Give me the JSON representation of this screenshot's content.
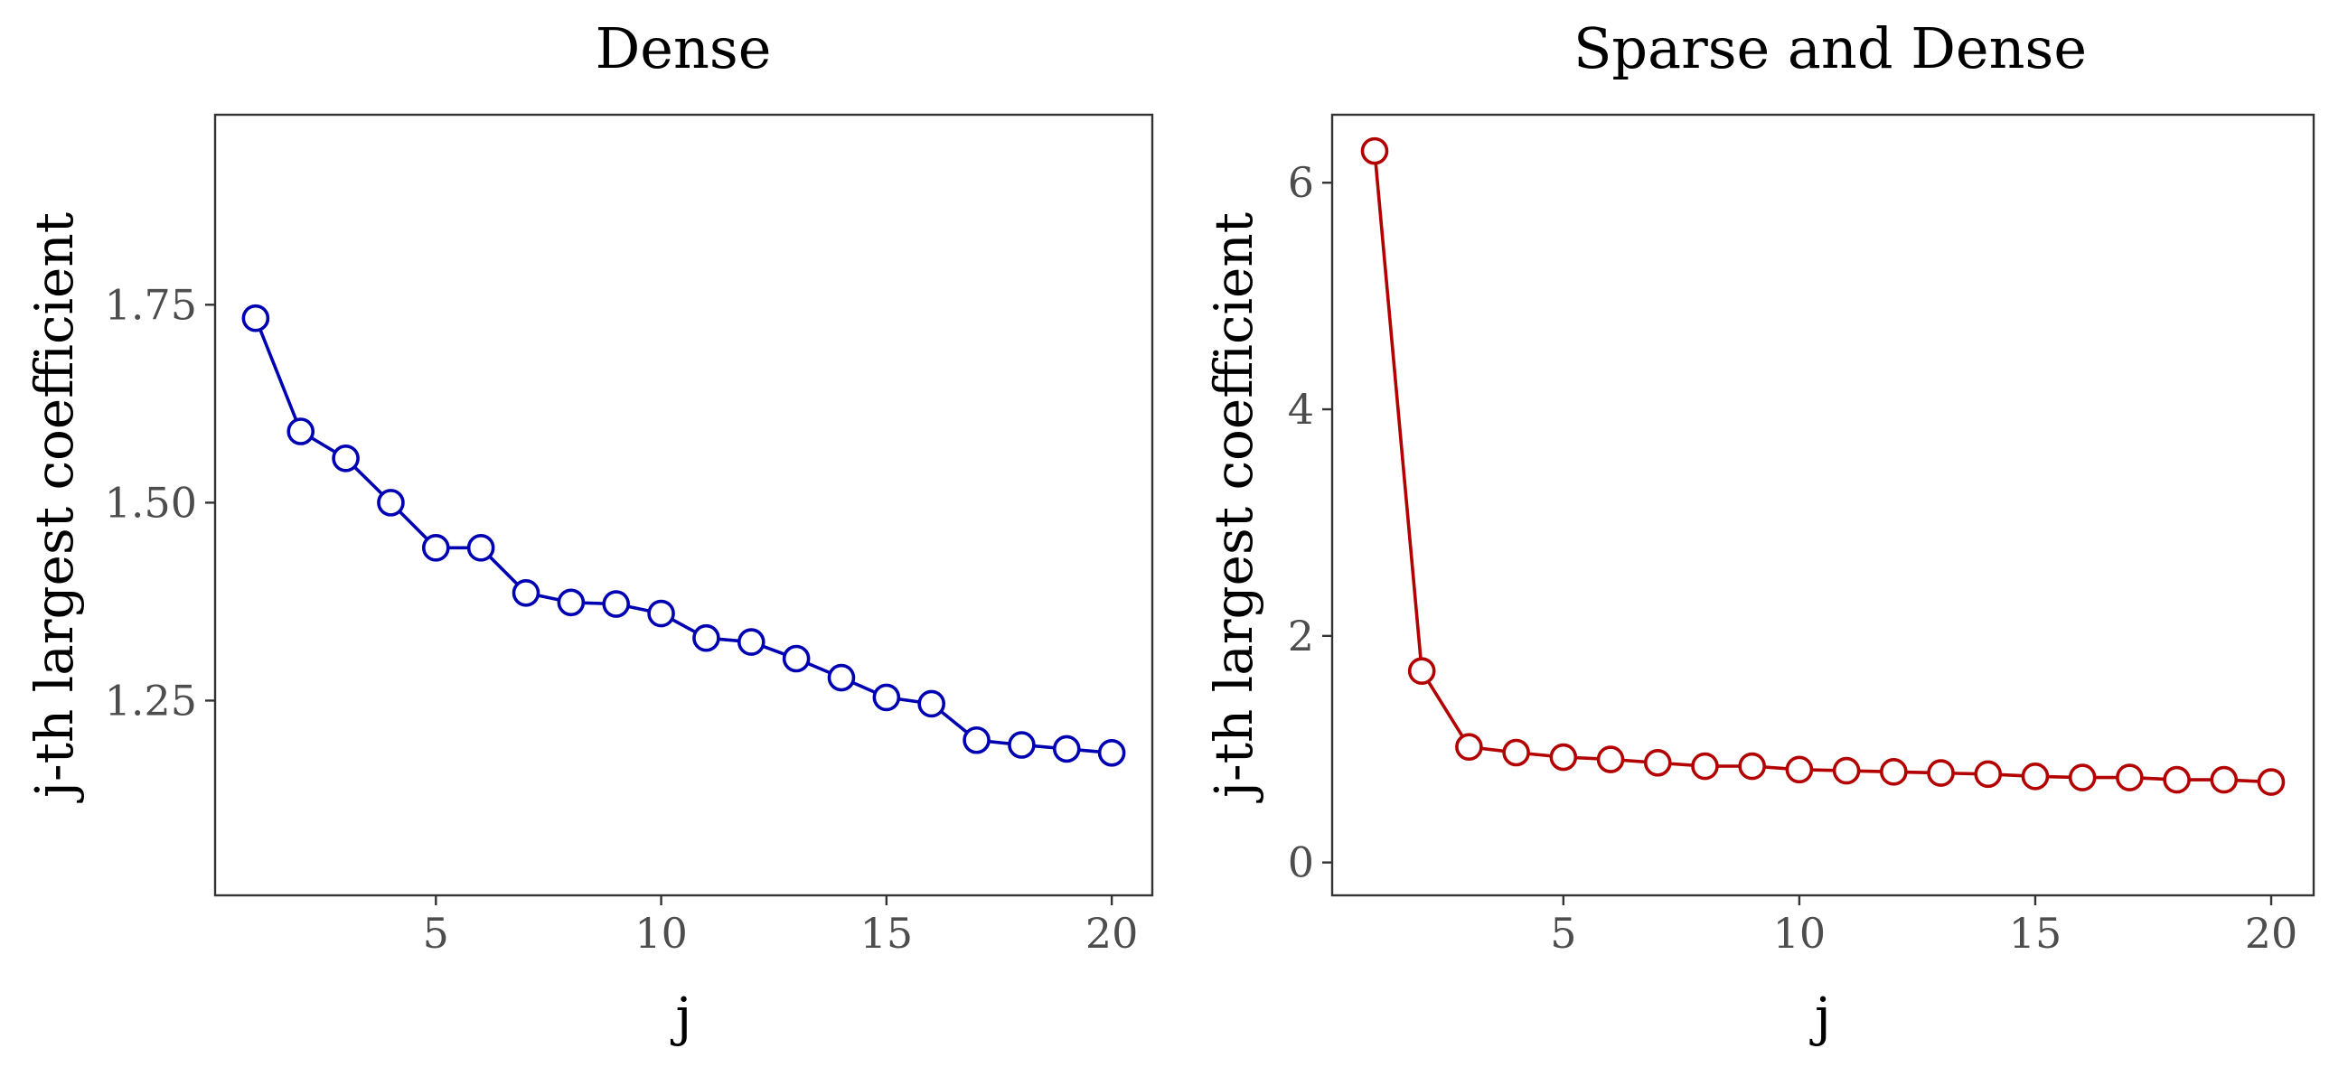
{
  "chart_data": [
    {
      "type": "line",
      "title": "Dense",
      "xlabel": "j",
      "ylabel": "j-th largest coefficient",
      "x": [
        1,
        2,
        3,
        4,
        5,
        6,
        7,
        8,
        9,
        10,
        11,
        12,
        13,
        14,
        15,
        16,
        17,
        18,
        19,
        20
      ],
      "series": [
        {
          "values": [
            1.733,
            1.59,
            1.556,
            1.5,
            1.443,
            1.443,
            1.386,
            1.374,
            1.372,
            1.36,
            1.329,
            1.324,
            1.303,
            1.279,
            1.254,
            1.246,
            1.2,
            1.194,
            1.189,
            1.184
          ],
          "color": "#0000b3"
        }
      ],
      "xlim": [
        0.1,
        20.9
      ],
      "ylim": [
        1.004,
        1.99
      ],
      "xticks": [
        5,
        10,
        15,
        20
      ],
      "xtick_labels": [
        "5",
        "10",
        "15",
        "20"
      ],
      "yticks": [
        1.25,
        1.5,
        1.75
      ],
      "ytick_labels": [
        "1.25",
        "1.50",
        "1.75"
      ],
      "grid": false,
      "marker": "open-circle"
    },
    {
      "type": "line",
      "title": "Sparse and Dense",
      "xlabel": "j",
      "ylabel": "j-th largest coefficient",
      "x": [
        1,
        2,
        3,
        4,
        5,
        6,
        7,
        8,
        9,
        10,
        11,
        12,
        13,
        14,
        15,
        16,
        17,
        18,
        19,
        20
      ],
      "series": [
        {
          "values": [
            6.28,
            1.69,
            1.02,
            0.97,
            0.93,
            0.91,
            0.88,
            0.85,
            0.85,
            0.82,
            0.81,
            0.8,
            0.79,
            0.78,
            0.76,
            0.75,
            0.75,
            0.73,
            0.73,
            0.71
          ],
          "color": "#b30000"
        }
      ],
      "xlim": [
        0.1,
        20.9
      ],
      "ylim": [
        -0.29,
        6.6
      ],
      "xticks": [
        5,
        10,
        15,
        20
      ],
      "xtick_labels": [
        "5",
        "10",
        "15",
        "20"
      ],
      "yticks": [
        0,
        2,
        4,
        6
      ],
      "ytick_labels": [
        "0",
        "2",
        "4",
        "6"
      ],
      "grid": false,
      "marker": "open-circle"
    }
  ]
}
